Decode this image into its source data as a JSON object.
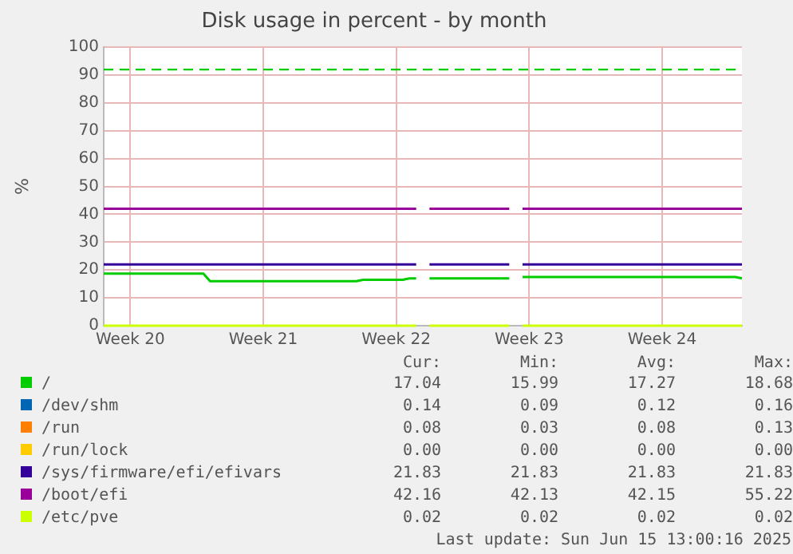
{
  "chart_data": {
    "type": "line",
    "title": "Disk usage in percent - by month",
    "ylabel": "%",
    "categories": [
      null,
      null,
      null,
      null,
      "Week 20",
      null,
      null,
      null,
      null,
      null,
      null,
      null,
      null,
      null,
      null,
      null,
      null,
      null,
      null,
      null,
      null,
      null,
      null,
      null,
      "Week 21",
      null,
      null,
      null,
      null,
      null,
      null,
      null,
      null,
      null,
      null,
      null,
      null,
      null,
      null,
      null,
      null,
      null,
      null,
      null,
      "Week 22",
      null,
      null,
      null,
      null,
      null,
      null,
      null,
      null,
      null,
      null,
      null,
      null,
      null,
      null,
      null,
      null,
      null,
      null,
      null,
      "Week 23",
      null,
      null,
      null,
      null,
      null,
      null,
      null,
      null,
      null,
      null,
      null,
      null,
      null,
      null,
      null,
      null,
      null,
      null,
      null,
      "Week 24",
      null,
      null,
      null,
      null,
      null,
      null,
      null,
      null,
      null,
      null,
      null,
      null
    ],
    "series": [
      {
        "name": "/",
        "color": "#00cc00",
        "values": [
          18.7,
          18.7,
          18.7,
          18.7,
          18.7,
          18.7,
          18.7,
          18.7,
          18.7,
          18.7,
          18.7,
          18.7,
          18.7,
          18.7,
          18.7,
          18.7,
          16,
          16,
          16,
          16,
          16,
          16,
          16,
          16,
          16,
          16,
          16,
          16,
          16,
          16,
          16,
          16,
          16,
          16,
          16,
          16,
          16,
          16,
          16,
          16.5,
          16.5,
          16.5,
          16.5,
          16.5,
          16.5,
          16.5,
          17,
          17,
          null,
          17,
          17,
          17,
          17,
          17,
          17,
          17,
          17,
          17,
          17,
          17,
          17,
          17,
          null,
          17.5,
          17.5,
          17.5,
          17.5,
          17.5,
          17.5,
          17.5,
          17.5,
          17.5,
          17.5,
          17.5,
          17.5,
          17.5,
          17.5,
          17.5,
          17.5,
          17.5,
          17.5,
          17.5,
          17.5,
          17.5,
          17.5,
          17.5,
          17.5,
          17.5,
          17.5,
          17.5,
          17.5,
          17.5,
          17.5,
          17.5,
          17.5,
          17.5,
          17
        ]
      },
      {
        "name": "/dev/shm",
        "color": "#0066b3",
        "values": [
          null,
          null,
          null,
          null,
          null,
          null,
          null,
          null,
          null,
          null,
          null,
          null,
          null,
          null,
          null,
          null,
          null,
          null,
          null,
          null,
          null,
          null,
          null,
          null,
          null,
          null,
          null,
          null,
          null,
          null,
          null,
          null,
          null,
          null,
          null,
          null,
          null,
          null,
          null,
          null,
          null,
          null,
          null,
          null,
          null,
          null,
          null,
          null,
          null,
          null,
          null,
          null,
          null,
          null,
          null,
          null,
          null,
          null,
          null,
          null,
          null,
          null,
          null,
          null,
          null,
          null,
          null,
          null,
          null,
          null,
          null,
          null,
          null,
          null,
          null,
          null,
          null,
          null,
          null,
          null,
          null,
          null,
          null,
          null,
          null,
          null,
          null,
          null,
          null,
          null,
          null,
          null,
          null,
          null,
          null,
          null,
          null
        ]
      },
      {
        "name": "/run",
        "color": "#ff8000",
        "values": [
          null,
          null,
          null,
          null,
          null,
          null,
          null,
          null,
          null,
          null,
          null,
          null,
          null,
          null,
          null,
          null,
          null,
          null,
          null,
          null,
          null,
          null,
          null,
          null,
          null,
          null,
          null,
          null,
          null,
          null,
          null,
          null,
          null,
          null,
          null,
          null,
          null,
          null,
          null,
          null,
          null,
          null,
          null,
          null,
          null,
          null,
          null,
          null,
          null,
          null,
          null,
          null,
          null,
          null,
          null,
          null,
          null,
          null,
          null,
          null,
          null,
          null,
          null,
          null,
          null,
          null,
          null,
          null,
          null,
          null,
          null,
          null,
          null,
          null,
          null,
          null,
          null,
          null,
          null,
          null,
          null,
          null,
          null,
          null,
          null,
          null,
          null,
          null,
          null,
          null,
          null,
          null,
          null,
          null,
          null,
          null,
          null
        ]
      },
      {
        "name": "/run/lock",
        "color": "#ffcc00",
        "values": [
          null,
          null,
          null,
          null,
          null,
          null,
          null,
          null,
          null,
          null,
          null,
          null,
          null,
          null,
          null,
          null,
          null,
          null,
          null,
          null,
          null,
          null,
          null,
          null,
          null,
          null,
          null,
          null,
          null,
          null,
          null,
          null,
          null,
          null,
          null,
          null,
          null,
          null,
          null,
          null,
          null,
          null,
          null,
          null,
          null,
          null,
          null,
          null,
          null,
          null,
          null,
          null,
          null,
          null,
          null,
          null,
          null,
          null,
          null,
          null,
          null,
          null,
          null,
          null,
          null,
          null,
          null,
          null,
          null,
          null,
          null,
          null,
          null,
          null,
          null,
          null,
          null,
          null,
          null,
          null,
          null,
          null,
          null,
          null,
          null,
          null,
          null,
          null,
          null,
          null,
          null,
          null,
          null,
          null,
          null,
          null,
          null
        ]
      },
      {
        "name": "/sys/firmware/efi/efivars",
        "color": "#330099",
        "values": [
          22,
          22,
          22,
          22,
          22,
          22,
          22,
          22,
          22,
          22,
          22,
          22,
          22,
          22,
          22,
          22,
          22,
          22,
          22,
          22,
          22,
          22,
          22,
          22,
          22,
          22,
          22,
          22,
          22,
          22,
          22,
          22,
          22,
          22,
          22,
          22,
          22,
          22,
          22,
          22,
          22,
          22,
          22,
          22,
          22,
          22,
          22,
          22,
          null,
          22,
          22,
          22,
          22,
          22,
          22,
          22,
          22,
          22,
          22,
          22,
          22,
          22,
          null,
          22,
          22,
          22,
          22,
          22,
          22,
          22,
          22,
          22,
          22,
          22,
          22,
          22,
          22,
          22,
          22,
          22,
          22,
          22,
          22,
          22,
          22,
          22,
          22,
          22,
          22,
          22,
          22,
          22,
          22,
          22,
          22,
          22,
          22
        ]
      },
      {
        "name": "/boot/efi",
        "color": "#990099",
        "values": [
          42,
          42,
          42,
          42,
          42,
          42,
          42,
          42,
          42,
          42,
          42,
          42,
          42,
          42,
          42,
          42,
          42,
          42,
          42,
          42,
          42,
          42,
          42,
          42,
          42,
          42,
          42,
          42,
          42,
          42,
          42,
          42,
          42,
          42,
          42,
          42,
          42,
          42,
          42,
          42,
          42,
          42,
          42,
          42,
          42,
          42,
          42,
          42,
          null,
          42,
          42,
          42,
          42,
          42,
          42,
          42,
          42,
          42,
          42,
          42,
          42,
          42,
          null,
          42,
          42,
          42,
          42,
          42,
          42,
          42,
          42,
          42,
          42,
          42,
          42,
          42,
          42,
          42,
          42,
          42,
          42,
          42,
          42,
          42,
          42,
          42,
          42,
          42,
          42,
          42,
          42,
          42,
          42,
          42,
          42,
          42,
          42
        ]
      },
      {
        "name": "/etc/pve",
        "color": "#ccff00",
        "values": [
          0,
          0,
          0,
          0,
          0,
          0,
          0,
          0,
          0,
          0,
          0,
          0,
          0,
          0,
          0,
          0,
          0,
          0,
          0,
          0,
          0,
          0,
          0,
          0,
          0,
          0,
          0,
          0,
          0,
          0,
          0,
          0,
          0,
          0,
          0,
          0,
          0,
          0,
          0,
          0,
          0,
          0,
          0,
          0,
          0,
          0,
          0,
          0,
          null,
          0,
          0,
          0,
          0,
          0,
          0,
          0,
          0,
          0,
          0,
          0,
          0,
          0,
          null,
          0,
          0,
          0,
          0,
          0,
          0,
          0,
          0,
          0,
          0,
          0,
          0,
          0,
          0,
          0,
          0,
          0,
          0,
          0,
          0,
          0,
          0,
          0,
          0,
          0,
          0,
          0,
          0,
          0,
          0,
          0,
          0,
          0,
          0
        ]
      }
    ],
    "ylim": [
      0,
      100
    ],
    "yticks": [
      0,
      10,
      20,
      30,
      40,
      50,
      60,
      70,
      80,
      90,
      100
    ],
    "ref_lines": [
      {
        "axis": "y",
        "value": 92,
        "color": "#00cc00",
        "line_style": "dashed"
      }
    ],
    "grid": true,
    "legend": "bottom",
    "marker": "none",
    "line_style": "solid",
    "annotations": [
      "Cur:",
      "Min:",
      "Avg:",
      "Max:",
      "17.04",
      "15.99",
      "17.27",
      "18.68",
      "0.14",
      "0.09",
      "0.12",
      "0.16",
      "0.08",
      "0.03",
      "0.08",
      "0.13",
      "0.00",
      "0.00",
      "0.00",
      "0.00",
      "21.83",
      "21.83",
      "21.83",
      "21.83",
      "42.16",
      "42.13",
      "42.15",
      "55.22",
      "0.02",
      "0.02",
      "0.02",
      "0.02",
      "Last update: Sun Jun 15 13:00:16 2025"
    ]
  }
}
